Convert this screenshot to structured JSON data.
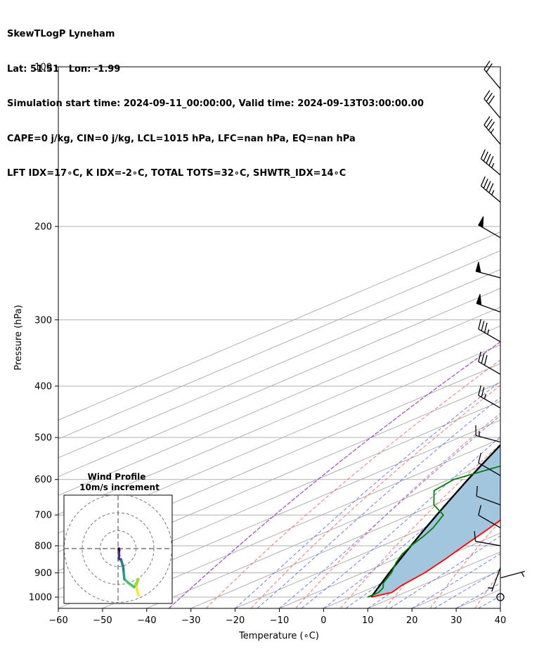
{
  "header": {
    "line1": "SkewTLogP Lyneham",
    "line2": "Lat: 51.51   Lon: -1.99",
    "line3": "Simulation start time: 2024-09-11_00:00:00, Valid time: 2024-09-13T03:00:00.00",
    "line4": "CAPE=0 j/kg, CIN=0 j/kg, LCL=1015 hPa, LFC=nan hPa, EQ=nan hPa",
    "line5": "LFT IDX=17∘C, K IDX=-2∘C, TOTAL TOTS=32∘C, SHWTR_IDX=14∘C"
  },
  "chart_data": {
    "type": "line",
    "subtype": "skew-t log-p",
    "xlabel": "Temperature (∘C)",
    "ylabel": "Pressure (hPa)",
    "xlim": [
      -60,
      40
    ],
    "ylim": [
      1050,
      100
    ],
    "y_scale": "log",
    "xticks": [
      -60,
      -50,
      -40,
      -30,
      -20,
      -10,
      0,
      10,
      20,
      30,
      40
    ],
    "yticks": [
      1000,
      900,
      800,
      700,
      600,
      500,
      400,
      300,
      200,
      100
    ],
    "grid": true,
    "colors": {
      "temperature": "#ff0000",
      "dewpoint": "#008000",
      "parcel": "#000000",
      "shading": "#a2c6de",
      "dry_adiabats": "#ff5050",
      "moist_adiabats": "#4a5cff",
      "mixing_ratio": "#9a30c8"
    },
    "series": [
      {
        "key": "temperature",
        "pressure_hPa": [
          1000,
          980,
          950,
          900,
          850,
          800,
          750,
          700,
          650,
          600,
          550,
          500,
          450,
          400,
          350,
          320,
          300,
          280,
          260,
          240,
          225,
          210,
          200,
          185,
          170,
          160,
          145,
          130,
          120,
          110,
          100
        ],
        "values": [
          4.8,
          7.0,
          5.5,
          4.0,
          1.5,
          -1.5,
          -4.5,
          -8.0,
          -11.5,
          -15.5,
          -20.5,
          -25.5,
          -31.0,
          -37.0,
          -41.5,
          -44.5,
          -47.5,
          -51.0,
          -54.0,
          -55.5,
          -55.5,
          -56.5,
          -56.5,
          -56.5,
          -56.0,
          -56.5,
          -56.5,
          -56.0,
          -55.5,
          -55.0,
          -54.0
        ]
      },
      {
        "key": "dewpoint",
        "pressure_hPa": [
          1000,
          980,
          960,
          940,
          900,
          860,
          830,
          800,
          770,
          740,
          700,
          670,
          630,
          600,
          560,
          520,
          480,
          450,
          420,
          400,
          370,
          340,
          320,
          300,
          270,
          250,
          230,
          210,
          190,
          175,
          165,
          150,
          100
        ],
        "values": [
          4.0,
          4.0,
          2.5,
          0.0,
          -3.5,
          -8.0,
          -11.0,
          -13.5,
          -15.5,
          -18.0,
          -22.5,
          -30.0,
          -37.5,
          -39.0,
          -35.0,
          -34.0,
          -35.0,
          -38.5,
          -40.5,
          -43.0,
          -47.5,
          -55.5,
          -57.5,
          -60.5,
          -63.0,
          -63.5,
          -64.0,
          -66.0,
          -70.0,
          -75.0,
          -80.0,
          -82.0,
          -82.0
        ]
      },
      {
        "key": "parcel",
        "pressure_hPa": [
          1000,
          950,
          900,
          850,
          800,
          750,
          700,
          650,
          600,
          550,
          500,
          450,
          400,
          350,
          300,
          250,
          200,
          150,
          100
        ],
        "values": [
          4.8,
          0.5,
          -4.0,
          -8.6,
          -13.5,
          -18.6,
          -24.0,
          -29.7,
          -35.8,
          -42.2,
          -49.1,
          -56.5,
          -64.6,
          -73.3,
          -82.7,
          -93.0,
          -104.6,
          -118.4,
          -136.3
        ]
      }
    ],
    "wind_barbs": [
      {
        "pressure_hPa": 1000,
        "direction_deg": null,
        "speed_kt": 0
      },
      {
        "pressure_hPa": 920,
        "direction_deg": 75,
        "speed_kt": 5
      },
      {
        "pressure_hPa": 880,
        "direction_deg": 200,
        "speed_kt": 5
      },
      {
        "pressure_hPa": 800,
        "direction_deg": 280,
        "speed_kt": 10
      },
      {
        "pressure_hPa": 740,
        "direction_deg": 300,
        "speed_kt": 10
      },
      {
        "pressure_hPa": 670,
        "direction_deg": 290,
        "speed_kt": 10
      },
      {
        "pressure_hPa": 590,
        "direction_deg": 300,
        "speed_kt": 10
      },
      {
        "pressure_hPa": 510,
        "direction_deg": 285,
        "speed_kt": 15
      },
      {
        "pressure_hPa": 440,
        "direction_deg": 300,
        "speed_kt": 25
      },
      {
        "pressure_hPa": 380,
        "direction_deg": 300,
        "speed_kt": 30
      },
      {
        "pressure_hPa": 330,
        "direction_deg": 300,
        "speed_kt": 35
      },
      {
        "pressure_hPa": 290,
        "direction_deg": 290,
        "speed_kt": 50
      },
      {
        "pressure_hPa": 250,
        "direction_deg": 285,
        "speed_kt": 50
      },
      {
        "pressure_hPa": 210,
        "direction_deg": 300,
        "speed_kt": 50
      },
      {
        "pressure_hPa": 180,
        "direction_deg": 310,
        "speed_kt": 45
      },
      {
        "pressure_hPa": 160,
        "direction_deg": 310,
        "speed_kt": 45
      },
      {
        "pressure_hPa": 140,
        "direction_deg": 320,
        "speed_kt": 35
      },
      {
        "pressure_hPa": 125,
        "direction_deg": 320,
        "speed_kt": 30
      },
      {
        "pressure_hPa": 110,
        "direction_deg": 320,
        "speed_kt": 20
      }
    ],
    "hodograph": {
      "title": "Wind Profile",
      "subtitle": "10m/s increment",
      "rings_ms": [
        10,
        20,
        30
      ],
      "u_ms": [
        11.5,
        10.5,
        10.3,
        11.3,
        9.0,
        5.6,
        3.5,
        3.0,
        2.8,
        1.6,
        0.8,
        0.4,
        0.6,
        0.4,
        0.7
      ],
      "v_ms": [
        -26.0,
        -23.0,
        -20.0,
        -17.0,
        -21.5,
        -19.0,
        -17.0,
        -12.0,
        -10.0,
        -6.0,
        -6.0,
        -5.5,
        -4.0,
        0.0,
        -1.0
      ]
    }
  }
}
